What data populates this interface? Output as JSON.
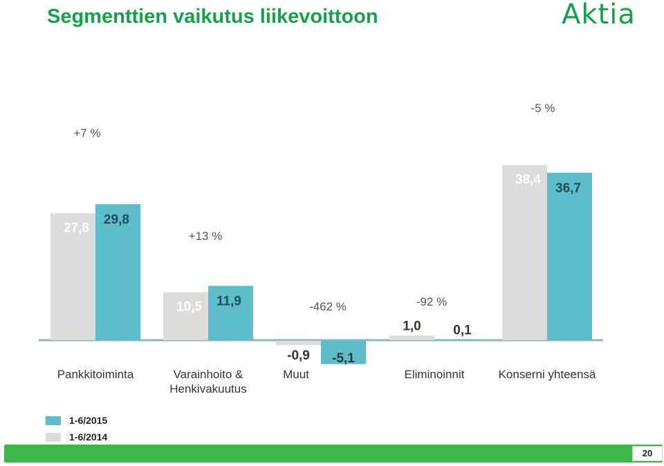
{
  "slide": {
    "title": "Segmenttien vaikutus liikevoittoon",
    "logo_text": "Aktia",
    "page_number": "20"
  },
  "colors": {
    "series_2015": "#5dbdca",
    "series_2014": "#dcdcdc",
    "title_green": "#16a04a",
    "footer_green": "#3cb84a"
  },
  "chart_data": {
    "type": "bar",
    "categories": [
      "Pankkitoiminta",
      "Varainhoito & Henkivakuutus",
      "Muut",
      "Eliminoinnit",
      "Konserni yhteensä"
    ],
    "series": [
      {
        "name": "1-6/2014",
        "values": [
          27.8,
          10.5,
          -0.9,
          1.0,
          38.4
        ],
        "labels": [
          "27,8",
          "10,5",
          "-0,9",
          "1,0",
          "38,4"
        ]
      },
      {
        "name": "1-6/2015",
        "values": [
          29.8,
          11.9,
          -5.1,
          0.1,
          36.7
        ],
        "labels": [
          "29,8",
          "11,9",
          "-5,1",
          "0,1",
          "36,7"
        ]
      }
    ],
    "changes": [
      "+7 %",
      "+13 %",
      "-462 %",
      "-92 %",
      "-5 %"
    ],
    "legend": [
      "1-6/2015",
      "1-6/2014"
    ],
    "legend_position": "bottom-left",
    "grid": false
  }
}
